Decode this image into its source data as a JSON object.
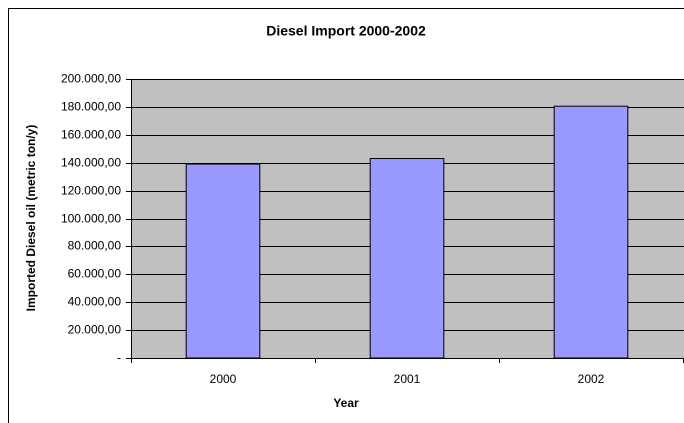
{
  "chart_data": {
    "type": "bar",
    "title": "Diesel Import 2000-2002",
    "x_label": "Year",
    "y_label": "Imported Diesel oil (metric ton/y)",
    "categories": [
      "2000",
      "2001",
      "2002"
    ],
    "values": [
      139000,
      143000,
      180500
    ],
    "color": "#9999ff",
    "ylim": [
      0,
      200000
    ],
    "yticks": [
      {
        "value": 0,
        "label": "-"
      },
      {
        "value": 20000,
        "label": "20.000,00"
      },
      {
        "value": 40000,
        "label": "40.000,00"
      },
      {
        "value": 60000,
        "label": "60.000,00"
      },
      {
        "value": 80000,
        "label": "80.000,00"
      },
      {
        "value": 100000,
        "label": "100.000,00"
      },
      {
        "value": 120000,
        "label": "120.000,00"
      },
      {
        "value": 140000,
        "label": "140.000,00"
      },
      {
        "value": 160000,
        "label": "160.000,00"
      },
      {
        "value": 180000,
        "label": "180.000,00"
      },
      {
        "value": 200000,
        "label": "200.000,00"
      }
    ],
    "grid": true
  }
}
